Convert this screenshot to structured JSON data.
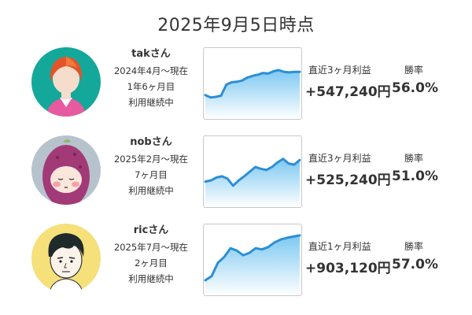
{
  "header": {
    "title": "2025年9月5日時点"
  },
  "users": [
    {
      "name": "takさん",
      "since": "2024年4月～現在",
      "duration": "1年6ヶ月目",
      "status": "利用継続中",
      "profit_label": "直近3ヶ月利益",
      "profit_value": "+547,240円",
      "winrate_label": "勝率",
      "winrate_value": "56.0%",
      "avatar_icon": "red-haired-person-avatar-icon",
      "avatar_bg": "#14a89a",
      "chart_line": [
        0.3,
        0.26,
        0.27,
        0.29,
        0.48,
        0.52,
        0.53,
        0.55,
        0.6,
        0.63,
        0.65,
        0.68,
        0.67,
        0.71,
        0.73,
        0.7,
        0.69,
        0.7,
        0.7
      ]
    },
    {
      "name": "nobさん",
      "since": "2025年2月～現在",
      "duration": "7ヶ月目",
      "status": "利用継続中",
      "profit_label": "直近3ヶ月利益",
      "profit_value": "+525,240円",
      "winrate_label": "勝率",
      "winrate_value": "51.0%",
      "avatar_icon": "purple-hooded-character-avatar-icon",
      "avatar_bg": "#b7c3cc",
      "chart_line": [
        0.33,
        0.35,
        0.4,
        0.42,
        0.38,
        0.26,
        0.35,
        0.42,
        0.5,
        0.58,
        0.55,
        0.53,
        0.58,
        0.66,
        0.72,
        0.64,
        0.62,
        0.7
      ]
    },
    {
      "name": "ricさん",
      "since": "2025年7月～現在",
      "duration": "2ヶ月目",
      "status": "利用継続中",
      "profit_label": "直近1ヶ月利益",
      "profit_value": "+903,120円",
      "winrate_label": "勝率",
      "winrate_value": "57.0%",
      "avatar_icon": "black-haired-man-avatar-icon",
      "avatar_bg": "#f5e07a",
      "chart_line": [
        0.15,
        0.22,
        0.45,
        0.55,
        0.7,
        0.66,
        0.58,
        0.62,
        0.7,
        0.68,
        0.72,
        0.8,
        0.85,
        0.88,
        0.9,
        0.92
      ]
    }
  ],
  "colors": {
    "accent": "#2b8fd6",
    "fill_top": "#7cc8f2",
    "fill_bottom": "#ffffff"
  }
}
